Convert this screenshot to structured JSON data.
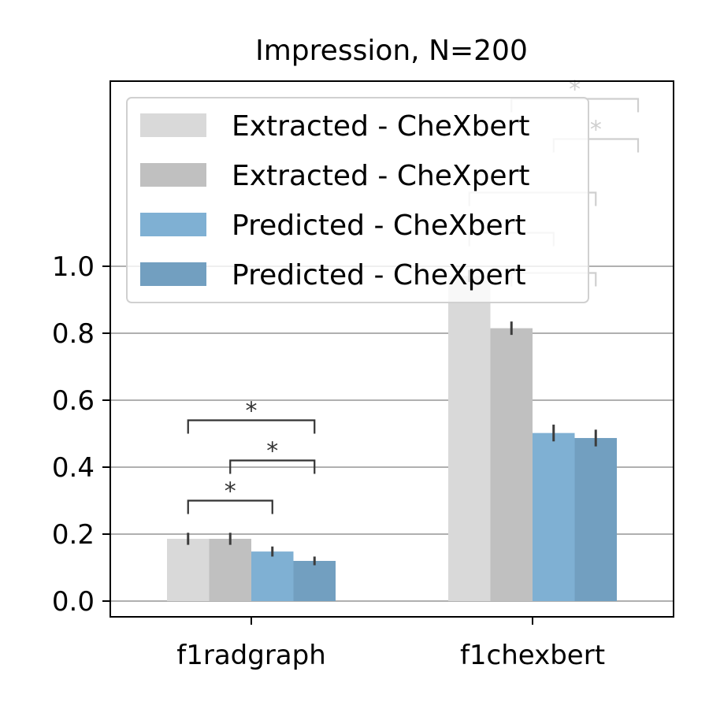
{
  "chart_data": {
    "type": "bar",
    "title": "Impression, N=200",
    "xlabel": "",
    "ylabel": "",
    "categories": [
      "f1radgraph",
      "f1chexbert"
    ],
    "ylim": [
      -0.05,
      1.55
    ],
    "yticks": [
      "0.0",
      "0.2",
      "0.4",
      "0.6",
      "0.8",
      "1.0"
    ],
    "grid": "horizontal",
    "legend_position": "top-left",
    "series": [
      {
        "name": "Extracted - CheXbert",
        "color": "#d9d9d9",
        "values": [
          0.186,
          0.971
        ],
        "err": [
          0.018,
          0.018
        ]
      },
      {
        "name": "Extracted - CheXpert",
        "color": "#c0c0c0",
        "values": [
          0.186,
          0.815
        ],
        "err": [
          0.018,
          0.02
        ]
      },
      {
        "name": "Predicted - CheXbert",
        "color": "#7fb0d3",
        "values": [
          0.148,
          0.502
        ],
        "err": [
          0.015,
          0.025
        ]
      },
      {
        "name": "Predicted - CheXpert",
        "color": "#729fc0",
        "values": [
          0.12,
          0.487
        ],
        "err": [
          0.013,
          0.025
        ]
      }
    ],
    "significance": [
      {
        "category": 0,
        "from": 0,
        "to": 2,
        "y": 0.3,
        "label": "*"
      },
      {
        "category": 0,
        "from": 1,
        "to": 3,
        "y": 0.42,
        "label": "*"
      },
      {
        "category": 0,
        "from": 0,
        "to": 3,
        "y": 0.54,
        "label": "*"
      },
      {
        "category": 1,
        "from": 0,
        "to": 2,
        "y": 1.1,
        "label": ""
      },
      {
        "category": 1,
        "from": 1,
        "to": 3,
        "y": 0.98,
        "label": ""
      },
      {
        "category": 1,
        "from": 0,
        "to": 3,
        "y": 1.22,
        "label": ""
      },
      {
        "category": 1,
        "from": 2,
        "to": 4,
        "y": 1.38,
        "label": "*"
      },
      {
        "category": 1,
        "from": 1,
        "to": 4,
        "y": 1.5,
        "label": "*"
      }
    ]
  }
}
